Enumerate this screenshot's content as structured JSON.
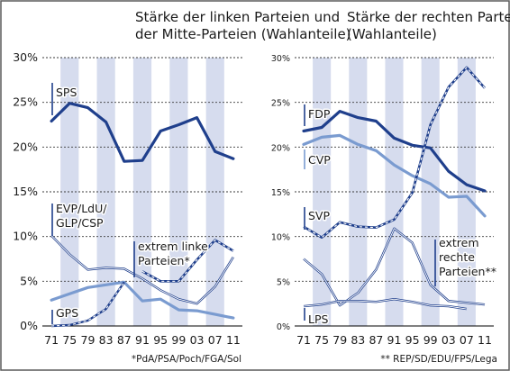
{
  "chart_data": [
    {
      "type": "line",
      "title": "Stärke der linken Parteien und der Mitte-Parteien (Wahlanteile)",
      "title_lines": [
        "Stärke der linken Parteien und",
        "der Mitte-Parteien (Wahlanteile)"
      ],
      "x": [
        "71",
        "75",
        "79",
        "83",
        "87",
        "91",
        "95",
        "99",
        "03",
        "07",
        "11"
      ],
      "y_ticks": [
        "0%",
        "5%",
        "10%",
        "15%",
        "20%",
        "25%",
        "30%"
      ],
      "ylim": [
        0,
        30
      ],
      "y_unit": "%",
      "grid": "horizontal dashed gridlines, alternating vertical column shading",
      "footnote": "*PdA/PSA/Poch/FGA/Sol",
      "series": [
        {
          "name": "SPS",
          "label_lines": [
            "SPS"
          ],
          "color": "#1f3f8c",
          "style": "solid",
          "width": 3.2,
          "values": [
            22.9,
            24.9,
            24.4,
            22.8,
            18.4,
            18.5,
            21.8,
            22.5,
            23.3,
            19.5,
            18.7
          ]
        },
        {
          "name": "EVP/LdU/GLP/CSP",
          "label_lines": [
            "EVP/LdU/",
            "GLP/CSP"
          ],
          "color": "#1f3f8c",
          "style": "double",
          "width": 2.4,
          "values": [
            10.1,
            8.0,
            6.3,
            6.5,
            6.4,
            5.3,
            4.0,
            3.0,
            2.5,
            4.4,
            7.7
          ]
        },
        {
          "name": "extrem linke Parteien*",
          "label_lines": [
            "extrem linke",
            "Parteien*"
          ],
          "color": "#1f3f8c",
          "style": "dashed-double",
          "width": 2.6,
          "values": [
            null,
            null,
            null,
            null,
            null,
            6.1,
            5.0,
            5.0,
            7.4,
            9.6,
            8.4
          ]
        },
        {
          "name": "GPS",
          "label_lines": [
            "GPS"
          ],
          "color": "#7a9bd0",
          "style": "solid",
          "width": 3.2,
          "values": [
            2.9,
            3.6,
            4.3,
            4.6,
            4.9,
            2.8,
            3.0,
            1.8,
            1.7,
            1.3,
            0.9
          ]
        },
        {
          "name": "GPS (early)",
          "label_lines": [],
          "color": "#1f3f8c",
          "style": "dashed-double",
          "width": 2.4,
          "values": [
            0.0,
            0.1,
            0.6,
            1.9,
            4.9,
            null,
            null,
            null,
            null,
            null,
            null
          ]
        }
      ]
    },
    {
      "type": "line",
      "title": "Stärke der rechten Parteien (Wahlanteile)",
      "title_lines": [
        "Stärke der rechten Parteien",
        "(Wahlanteile)"
      ],
      "x": [
        "71",
        "75",
        "79",
        "83",
        "87",
        "91",
        "95",
        "99",
        "03",
        "07",
        "11"
      ],
      "y_ticks": [
        "0%",
        "5%",
        "10%",
        "15%",
        "20%",
        "25%",
        "30%"
      ],
      "ylim": [
        0,
        30
      ],
      "y_unit": "%",
      "grid": "horizontal dashed gridlines, alternating vertical column shading",
      "footnote": "** REP/SD/EDU/FPS/Lega",
      "series": [
        {
          "name": "FDP",
          "label_lines": [
            "FDP"
          ],
          "color": "#1f3f8c",
          "style": "solid",
          "width": 3.2,
          "values": [
            21.8,
            22.2,
            24.0,
            23.3,
            22.9,
            21.0,
            20.2,
            19.9,
            17.3,
            15.8,
            15.1
          ]
        },
        {
          "name": "CVP",
          "label_lines": [
            "CVP"
          ],
          "color": "#7a9bd0",
          "style": "solid",
          "width": 3.2,
          "values": [
            20.3,
            21.1,
            21.3,
            20.3,
            19.6,
            18.0,
            16.8,
            15.9,
            14.4,
            14.5,
            12.3
          ]
        },
        {
          "name": "SVP",
          "label_lines": [
            "SVP"
          ],
          "color": "#1f3f8c",
          "style": "dashed-double",
          "width": 2.6,
          "values": [
            11.1,
            9.9,
            11.6,
            11.1,
            11.0,
            11.9,
            14.9,
            22.5,
            26.7,
            28.9,
            26.6
          ]
        },
        {
          "name": "extrem rechte Parteien**",
          "label_lines": [
            "extrem",
            "rechte",
            "Parteien**"
          ],
          "color": "#1f3f8c",
          "style": "double",
          "width": 2.4,
          "values": [
            7.5,
            5.8,
            2.3,
            3.7,
            6.3,
            10.9,
            9.3,
            4.6,
            2.8,
            2.6,
            2.4
          ]
        },
        {
          "name": "LPS",
          "label_lines": [
            "LPS"
          ],
          "color": "#1f3f8c",
          "style": "double",
          "width": 2.4,
          "values": [
            2.2,
            2.4,
            2.8,
            2.8,
            2.7,
            3.0,
            2.7,
            2.3,
            2.2,
            1.9,
            null
          ]
        }
      ]
    }
  ],
  "colors": {
    "frame": "#5a5a5a",
    "shade": "#d6dcee",
    "grid": "#3a3a3a",
    "text": "#1a1a1a",
    "dark_blue": "#1f3f8c",
    "light_blue": "#7a9bd0"
  }
}
